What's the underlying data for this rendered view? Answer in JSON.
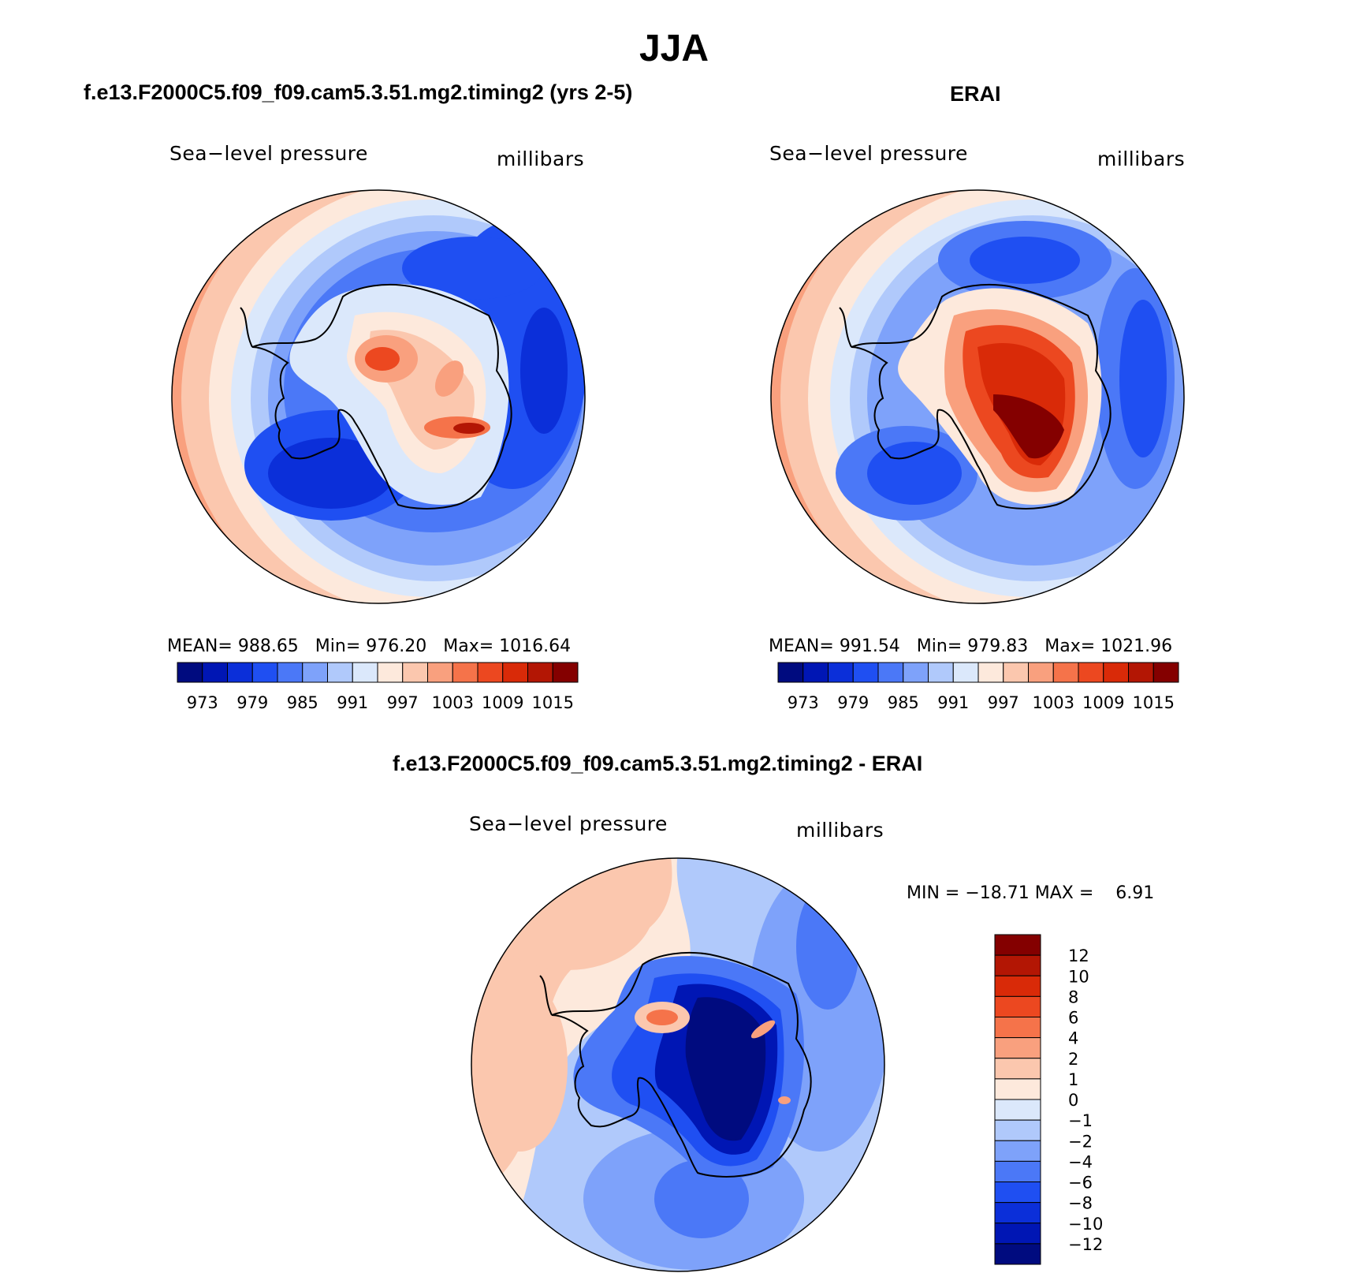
{
  "title": "JJA",
  "panels": [
    {
      "id": "model",
      "title": "f.e13.F2000C5.f09_f09.cam5.3.51.mg2.timing2 (yrs 2-5)",
      "variable": "Sea−level pressure",
      "units": "millibars",
      "stats": {
        "mean_label": "MEAN=",
        "mean": "988.65",
        "min_label": "Min=",
        "min": "976.20",
        "max_label": "Max=",
        "max": "1016.64"
      }
    },
    {
      "id": "obs",
      "title": "ERAI",
      "variable": "Sea−level pressure",
      "units": "millibars",
      "stats": {
        "mean_label": "MEAN=",
        "mean": "991.54",
        "min_label": "Min=",
        "min": "979.83",
        "max_label": "Max=",
        "max": "1021.96"
      }
    },
    {
      "id": "diff",
      "title": "f.e13.F2000C5.f09_f09.cam5.3.51.mg2.timing2 - ERAI",
      "variable": "Sea−level pressure",
      "units": "millibars",
      "stats": {
        "text": "MIN = −18.71 MAX =    6.91"
      }
    }
  ],
  "colors": {
    "abs_scale": [
      "#000b7f",
      "#0016b4",
      "#0b2fd9",
      "#1f4ff2",
      "#4b78f7",
      "#7ea2fa",
      "#b0c9fb",
      "#dbe8fb",
      "#fde9dc",
      "#fbc7ae",
      "#f9a07e",
      "#f5734a",
      "#ec4820",
      "#d92a08",
      "#b31604",
      "#840000"
    ],
    "diff_scale": [
      "#000b7f",
      "#0016b4",
      "#0b2fd9",
      "#1f4ff2",
      "#4b78f7",
      "#7ea2fa",
      "#b0c9fb",
      "#dbe8fb",
      "#fde9dc",
      "#fbc7ae",
      "#f9a07e",
      "#f5734a",
      "#ec4820",
      "#d92a08",
      "#b31604",
      "#840000"
    ]
  },
  "chart_data": [
    {
      "type": "heatmap",
      "projection": "south-polar-stereographic",
      "title": "f.e13.F2000C5.f09_f09.cam5.3.51.mg2.timing2 (yrs 2-5)",
      "variable": "Sea-level pressure",
      "units": "millibars",
      "mean": 988.65,
      "min": 976.2,
      "max": 1016.64,
      "levels": [
        970,
        973,
        976,
        979,
        982,
        985,
        988,
        991,
        994,
        997,
        1000,
        1003,
        1006,
        1009,
        1012,
        1015
      ],
      "colorbar_labels": [
        "973",
        "979",
        "985",
        "991",
        "997",
        "1003",
        "1009",
        "1015"
      ],
      "colorbar_orientation": "horizontal"
    },
    {
      "type": "heatmap",
      "projection": "south-polar-stereographic",
      "title": "ERAI",
      "variable": "Sea-level pressure",
      "units": "millibars",
      "mean": 991.54,
      "min": 979.83,
      "max": 1021.96,
      "levels": [
        970,
        973,
        976,
        979,
        982,
        985,
        988,
        991,
        994,
        997,
        1000,
        1003,
        1006,
        1009,
        1012,
        1015
      ],
      "colorbar_labels": [
        "973",
        "979",
        "985",
        "991",
        "997",
        "1003",
        "1009",
        "1015"
      ],
      "colorbar_orientation": "horizontal"
    },
    {
      "type": "heatmap",
      "projection": "south-polar-stereographic",
      "title": "f.e13.F2000C5.f09_f09.cam5.3.51.mg2.timing2 - ERAI",
      "variable": "Sea-level pressure",
      "units": "millibars",
      "min": -18.71,
      "max": 6.91,
      "levels": [
        -12,
        -10,
        -8,
        -6,
        -4,
        -2,
        -1,
        0,
        1,
        2,
        4,
        6,
        8,
        10,
        12
      ],
      "colorbar_labels": [
        "12",
        "10",
        "8",
        "6",
        "4",
        "2",
        "1",
        "0",
        "−1",
        "−2",
        "−4",
        "−6",
        "−8",
        "−10",
        "−12"
      ],
      "colorbar_orientation": "vertical"
    }
  ]
}
